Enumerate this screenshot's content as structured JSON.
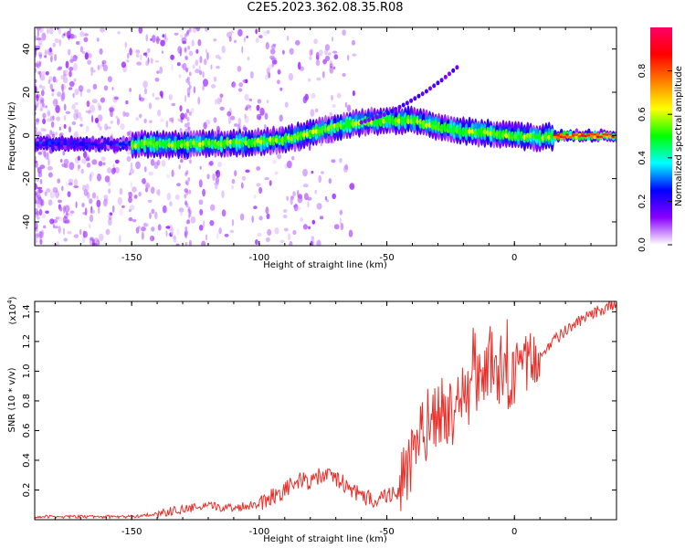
{
  "title": "C2E5.2023.362.08.35.R08",
  "colors": {
    "snr_line": "#e8302a",
    "axis": "#000000"
  },
  "chart_data": [
    {
      "type": "heatmap",
      "title": "C2E5.2023.362.08.35.R08",
      "xlabel": "Height of straight line (km)",
      "ylabel": "Frequency (Hz)",
      "xlim": [
        -188,
        40
      ],
      "ylim": [
        -51,
        50
      ],
      "xticks": [
        -150,
        -100,
        -50,
        0
      ],
      "xtick_labels": [
        "-150",
        "-100",
        "-50",
        "0"
      ],
      "yticks": [
        -40,
        -20,
        0,
        20,
        40
      ],
      "ytick_labels": [
        "-40",
        "-20",
        "0",
        "20",
        "40"
      ],
      "grid": false,
      "ridge": {
        "x": [
          -188,
          -170,
          -150,
          -140,
          -120,
          -100,
          -90,
          -80,
          -70,
          -60,
          -50,
          -40,
          -30,
          -20,
          -10,
          0,
          10,
          20,
          30,
          40
        ],
        "y": [
          -4,
          -4,
          -4,
          -4,
          -4,
          -3,
          -2,
          1,
          4,
          6,
          7,
          7,
          4,
          2,
          1,
          0,
          -1,
          0,
          0,
          0
        ]
      },
      "branch": {
        "x": [
          -60,
          -50,
          -42,
          -35,
          -28,
          -22
        ],
        "y": [
          6,
          10,
          15,
          20,
          26,
          32
        ]
      },
      "colorbar": {
        "label": "Normalized spectral amplitude",
        "ticks": [
          0.0,
          0.2,
          0.4,
          0.6,
          0.8
        ],
        "tick_labels": [
          "0.0",
          "0.2",
          "0.4",
          "0.6",
          "0.8"
        ],
        "range": [
          0,
          1
        ],
        "stops": [
          "#ffffff",
          "#8a00ff",
          "#0000ff",
          "#00ffff",
          "#00ff00",
          "#ffff00",
          "#ff8000",
          "#ff0000",
          "#ff0066"
        ]
      }
    },
    {
      "type": "line",
      "xlabel": "Height of straight line (km)",
      "ylabel": "SNR (10 * v/v)",
      "y_multiplier": "(x10",
      "y_multiplier_exp": "4",
      "y_multiplier_close": ")",
      "xlim": [
        -188,
        40
      ],
      "ylim": [
        0,
        1.47
      ],
      "xticks": [
        -150,
        -100,
        -50,
        0
      ],
      "xtick_labels": [
        "-150",
        "-100",
        "-50",
        "0"
      ],
      "yticks": [
        0.2,
        0.4,
        0.6,
        0.8,
        1.0,
        1.2,
        1.4
      ],
      "ytick_labels": [
        "0.2",
        "0.4",
        "0.6",
        "0.8",
        "1.0",
        "1.2",
        "1.4"
      ],
      "grid": false,
      "series": [
        {
          "x": [
            -188,
            -170,
            -150,
            -140,
            -130,
            -120,
            -110,
            -100,
            -95,
            -90,
            -85,
            -80,
            -75,
            -70,
            -65,
            -60,
            -55,
            -50,
            -45,
            -42,
            -40,
            -38,
            -35,
            -32,
            -30,
            -28,
            -25,
            -22,
            -20,
            -18,
            -15,
            -12,
            -10,
            -8,
            -5,
            -3,
            0,
            2,
            5,
            8,
            10,
            12,
            15,
            20,
            25,
            30,
            35,
            40
          ],
          "y": [
            0.02,
            0.02,
            0.02,
            0.04,
            0.07,
            0.09,
            0.08,
            0.11,
            0.16,
            0.2,
            0.26,
            0.26,
            0.3,
            0.28,
            0.22,
            0.15,
            0.14,
            0.16,
            0.2,
            0.3,
            0.42,
            0.5,
            0.6,
            0.7,
            0.75,
            0.7,
            0.72,
            0.74,
            0.86,
            0.8,
            0.9,
            0.96,
            1.02,
            1.0,
            0.95,
            0.93,
            0.98,
            1.02,
            1.05,
            1.07,
            1.1,
            1.15,
            1.2,
            1.27,
            1.33,
            1.38,
            1.42,
            1.45
          ]
        }
      ]
    }
  ]
}
